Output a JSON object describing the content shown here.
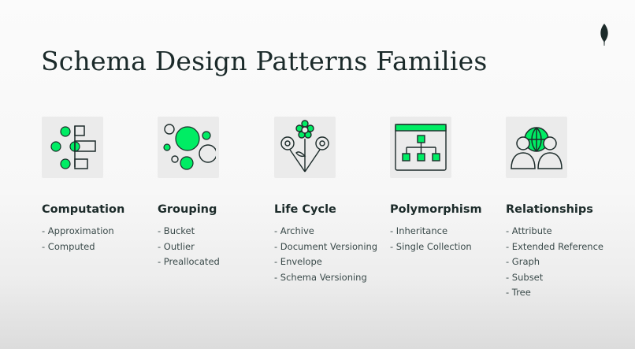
{
  "slide": {
    "title": "Schema Design Patterns Families",
    "logo_icon": "mongodb-leaf-icon",
    "accent_color": "#00ed64",
    "line_color": "#1c2b2a"
  },
  "families": [
    {
      "name": "Computation",
      "icon": "computation-icon",
      "items": [
        "- Approximation",
        "- Computed"
      ]
    },
    {
      "name": "Grouping",
      "icon": "grouping-bubbles-icon",
      "items": [
        "- Bucket",
        "- Outlier",
        "- Preallocated"
      ]
    },
    {
      "name": "Life Cycle",
      "icon": "flowers-icon",
      "items": [
        "- Archive",
        "- Document Versioning",
        "- Envelope",
        "- Schema Versioning"
      ]
    },
    {
      "name": "Polymorphism",
      "icon": "hierarchy-window-icon",
      "items": [
        "- Inheritance",
        "- Single Collection"
      ]
    },
    {
      "name": "Relationships",
      "icon": "people-globe-icon",
      "items": [
        "- Attribute",
        "- Extended Reference",
        "- Graph",
        "- Subset",
        "- Tree"
      ]
    }
  ]
}
